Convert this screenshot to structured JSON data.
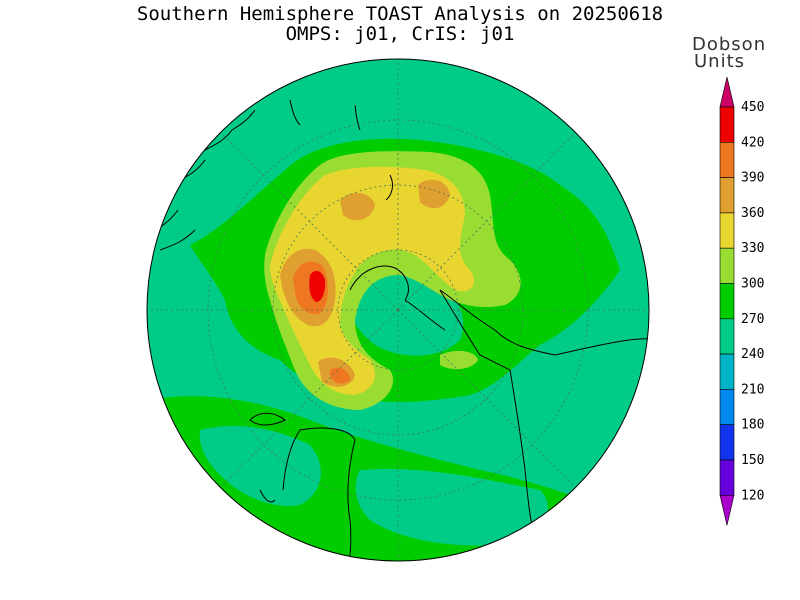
{
  "header": {
    "title": "Southern Hemisphere TOAST Analysis on 20250618",
    "subtitle": "OMPS: j01, CrIS: j01"
  },
  "legend": {
    "unit_line1": "Dobson",
    "unit_line2": "Units",
    "ticks": [
      "450",
      "420",
      "390",
      "360",
      "330",
      "300",
      "270",
      "240",
      "210",
      "180",
      "150",
      "120"
    ],
    "colors": [
      "#ee0000",
      "#ee7722",
      "#e0a030",
      "#e8d530",
      "#99dd33",
      "#00cc00",
      "#00cc88",
      "#00b4c8",
      "#0088ee",
      "#1133ee",
      "#6600dd"
    ],
    "top_cap_color": "#cc0066",
    "bottom_cap_color": "#aa00cc"
  },
  "map": {
    "background_color": "#00cc88",
    "projection": "south polar stereographic"
  }
}
